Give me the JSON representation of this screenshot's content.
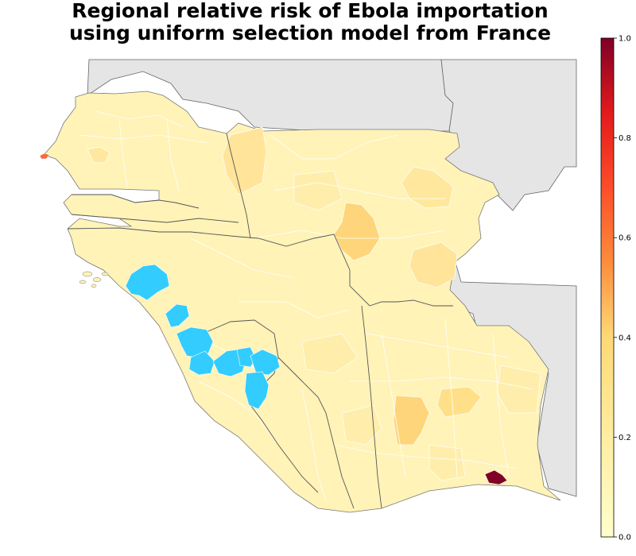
{
  "title": {
    "line1": "Regional relative risk of Ebola importation",
    "line2": "using uniform selection model from France"
  },
  "colors": {
    "background_land": "#e5e5e5",
    "affected_region": "#33ccff",
    "region_border": "#ffffff",
    "country_border": "#555555",
    "scale_low": "#ffffcc",
    "scale_mid": "#fd8d3c",
    "scale_high": "#800026"
  },
  "colorbar": {
    "min": 0.0,
    "max": 1.0,
    "ticks": [
      {
        "value": 0.0,
        "label": "0.0"
      },
      {
        "value": 0.2,
        "label": "0.2"
      },
      {
        "value": 0.4,
        "label": "0.4"
      },
      {
        "value": 0.6,
        "label": "0.6"
      },
      {
        "value": 0.8,
        "label": "0.8"
      },
      {
        "value": 1.0,
        "label": "1.0"
      }
    ]
  },
  "highlights": {
    "max_risk_value": 1.0,
    "dakar_risk_value": 0.55
  }
}
